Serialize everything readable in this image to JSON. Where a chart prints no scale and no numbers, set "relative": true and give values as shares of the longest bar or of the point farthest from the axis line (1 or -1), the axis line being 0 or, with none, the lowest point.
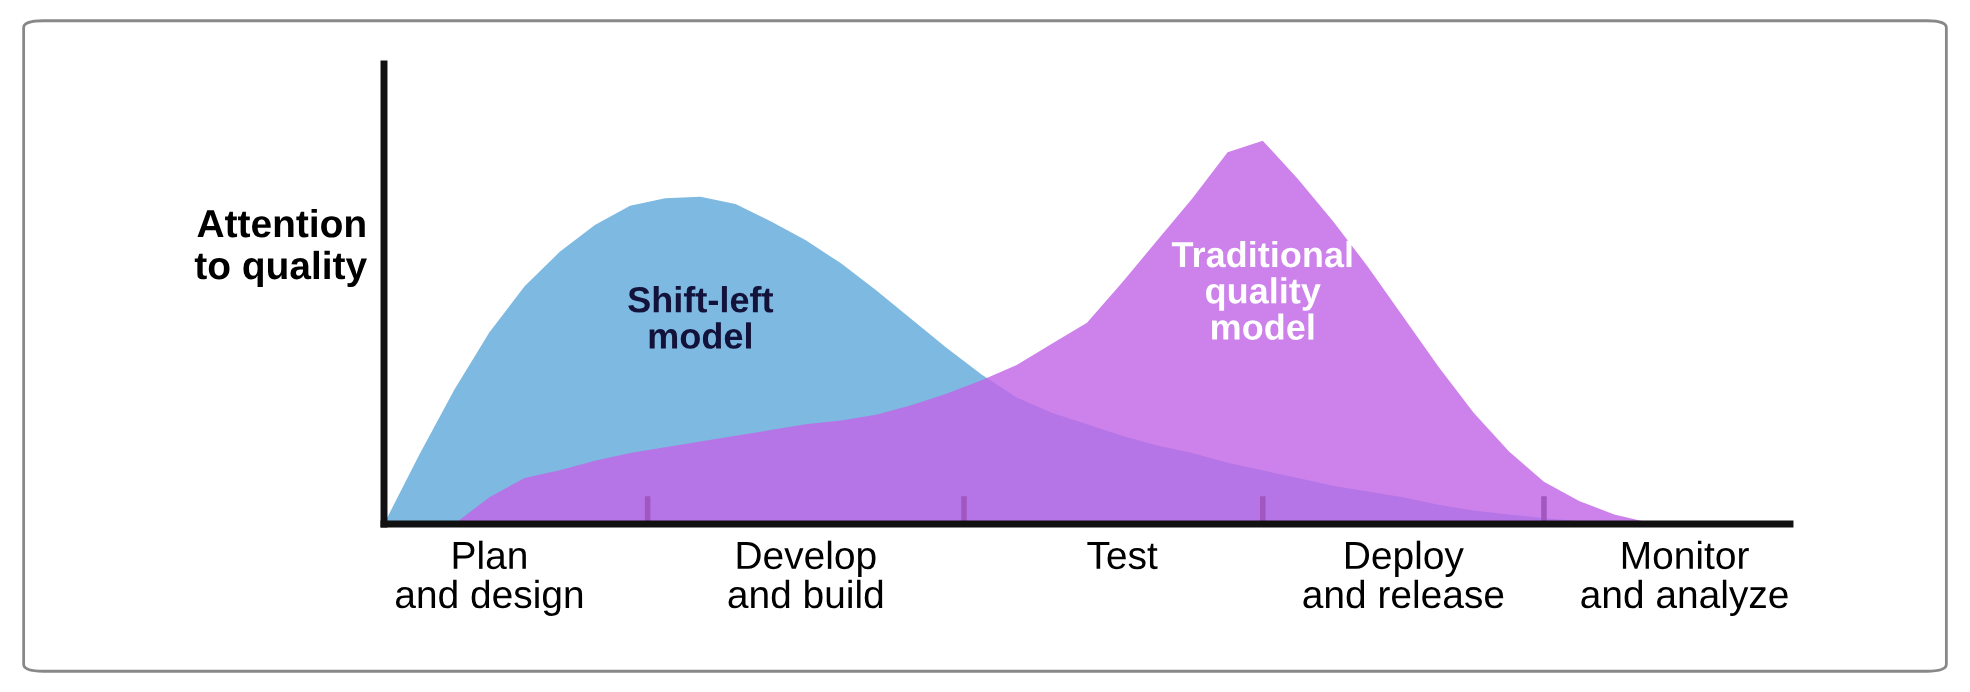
{
  "chart_data": {
    "type": "area",
    "relative": true,
    "ylabel": "Attention\nto quality",
    "legend": false,
    "grid": false,
    "tick_labels": "x",
    "categories": [
      null,
      null,
      null,
      "Plan\nand design",
      null,
      null,
      null,
      null,
      null,
      null,
      null,
      null,
      "Develop\nand build",
      null,
      null,
      null,
      null,
      null,
      null,
      null,
      null,
      "Test",
      null,
      null,
      null,
      null,
      null,
      null,
      null,
      "Deploy\nand release",
      null,
      null,
      null,
      null,
      null,
      null,
      null,
      "Monitor\nand analyze",
      null,
      null,
      null
    ],
    "series": [
      {
        "name": "Shift-left\nmodel",
        "color": "#7db9e0",
        "values": [
          0,
          0.18,
          0.35,
          0.5,
          0.62,
          0.71,
          0.78,
          0.83,
          0.85,
          0.854,
          0.835,
          0.79,
          0.74,
          0.68,
          0.61,
          0.535,
          0.46,
          0.39,
          0.33,
          0.29,
          0.26,
          0.23,
          0.205,
          0.185,
          0.16,
          0.14,
          0.12,
          0.1,
          0.085,
          0.07,
          0.05,
          0.035,
          0.025,
          0.015,
          0.008,
          0.003,
          0,
          null,
          null,
          null,
          null
        ]
      },
      {
        "name": "Traditional\nquality\nmodel",
        "color": "#c266e6",
        "values": [
          null,
          null,
          0,
          0.07,
          0.12,
          0.14,
          0.165,
          0.185,
          0.2,
          0.215,
          0.23,
          0.245,
          0.26,
          0.27,
          0.285,
          0.31,
          0.34,
          0.375,
          0.415,
          0.47,
          0.525,
          0.63,
          0.74,
          0.85,
          0.97,
          1,
          0.9,
          0.79,
          0.67,
          0.54,
          0.41,
          0.29,
          0.19,
          0.11,
          0.06,
          0.025,
          0.003,
          0,
          null,
          null,
          null
        ]
      }
    ]
  }
}
